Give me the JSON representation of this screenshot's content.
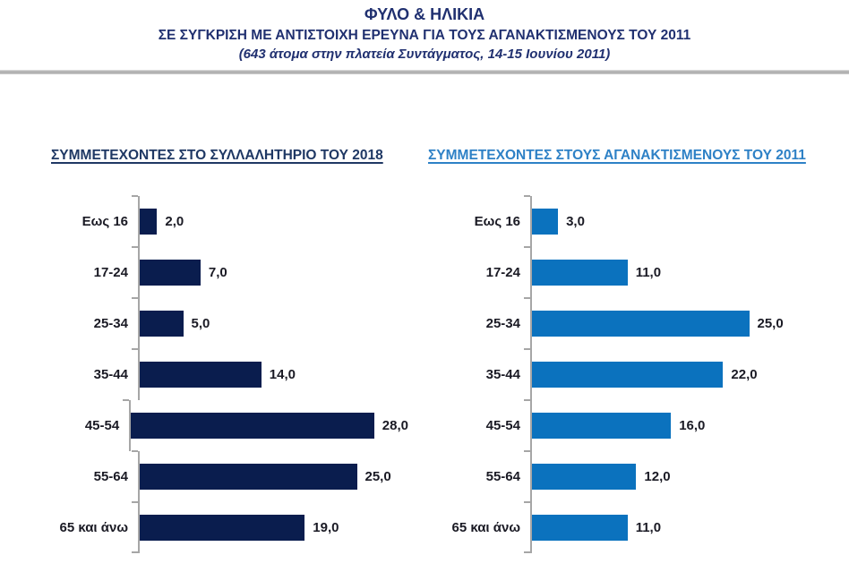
{
  "header": {
    "title": "ΦΥΛΟ & ΗΛΙΚΙΑ",
    "subtitle": "ΣΕ ΣΥΓΚΡΙΣΗ ΜΕ ΑΝΤΙΣΤΟΙΧΗ ΕΡΕΥΝΑ ΓΙΑ ΤΟΥΣ ΑΓΑΝΑΚΤΙΣΜΕΝΟΥΣ ΤΟΥ 2011",
    "note": "(643 άτομα στην πλατεία Συντάγματος, 14-15 Ιουνίου 2011)"
  },
  "chart_data": [
    {
      "type": "bar",
      "orientation": "horizontal",
      "title": "ΣΥΜΜΕΤΕΧΟΝΤΕΣ ΣΤΟ ΣΥΛΛΑΛΗΤΗΡΙΟ ΤΟΥ 2018",
      "categories": [
        "Εως 16",
        "17-24",
        "25-34",
        "35-44",
        "45-54",
        "55-64",
        "65 και άνω"
      ],
      "values": [
        2.0,
        7.0,
        5.0,
        14.0,
        28.0,
        25.0,
        19.0
      ],
      "value_labels": [
        "2,0",
        "7,0",
        "5,0",
        "14,0",
        "28,0",
        "25,0",
        "19,0"
      ],
      "xlim": [
        0,
        30
      ],
      "grid": false,
      "legend": "none",
      "bar_color": "#0a1d4e",
      "title_color": "#1f3864"
    },
    {
      "type": "bar",
      "orientation": "horizontal",
      "title": "ΣΥΜΜΕΤΕΧΟΝΤΕΣ ΣΤΟΥΣ ΑΓΑΝΑΚΤΙΣΜΕΝΟΥΣ ΤΟΥ 2011",
      "categories": [
        "Εως 16",
        "17-24",
        "25-34",
        "35-44",
        "45-54",
        "55-64",
        "65 και άνω"
      ],
      "values": [
        3.0,
        11.0,
        25.0,
        22.0,
        16.0,
        12.0,
        11.0
      ],
      "value_labels": [
        "3,0",
        "11,0",
        "25,0",
        "22,0",
        "16,0",
        "12,0",
        "11,0"
      ],
      "xlim": [
        0,
        30
      ],
      "grid": false,
      "legend": "none",
      "bar_color": "#0b72be",
      "title_color": "#2e81c6"
    }
  ],
  "colors": {
    "header_text": "#203070",
    "axis": "#a6a6a6",
    "label_text": "#1a1a24",
    "divider": "#a9a9a9",
    "chart_2018_bar": "#0a1d4e",
    "chart_2011_bar": "#0b72be"
  }
}
